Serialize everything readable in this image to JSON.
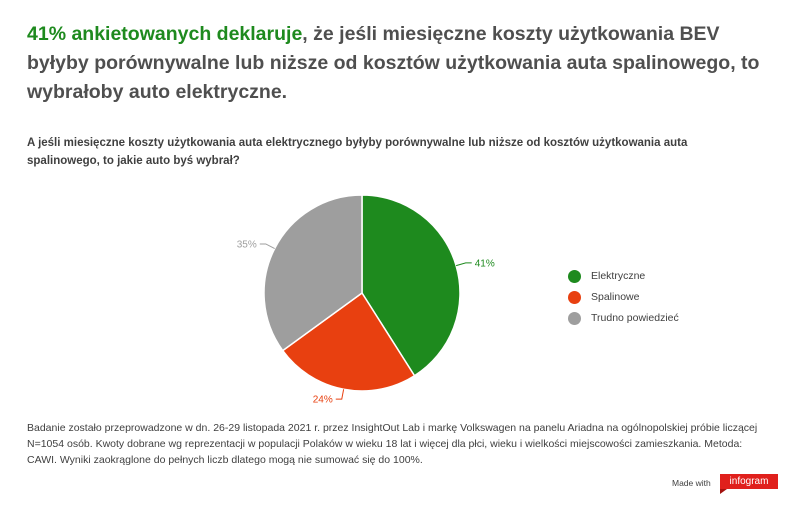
{
  "headline": {
    "accent": "41% ankietowanych deklaruje",
    "rest": ", że jeśli miesięczne koszty użytkowania BEV byłyby porównywalne lub niższe od kosztów użytkowania auta spalinowego, to wybrałoby auto elektryczne."
  },
  "question": "A jeśli miesięczne koszty użytkowania auta elektrycznego byłyby porównywalne lub niższe od kosztów użytkowania auta spalinowego, to jakie auto byś wybrał?",
  "chart_data": {
    "type": "pie",
    "legend_position": "right",
    "slices": [
      {
        "label": "Elektryczne",
        "value": 41,
        "display": "41%",
        "color": "#1e8a1e"
      },
      {
        "label": "Spalinowe",
        "value": 24,
        "display": "24%",
        "color": "#e84010"
      },
      {
        "label": "Trudno powiedzieć",
        "value": 35,
        "display": "35%",
        "color": "#9e9e9e"
      }
    ]
  },
  "footnote": "Badanie zostało przeprowadzone w dn. 26-29 listopada 2021 r. przez InsightOut Lab i markę Volkswagen na panelu Ariadna na ogólnopolskiej próbie liczącej N=1054 osób. Kwoty dobrane wg reprezentacji w populacji Polaków w wieku 18 lat i więcej dla płci, wieku i wielkości miejscowości zamieszkania. Metoda: CAWI. Wyniki zaokrąglone do pełnych liczb dlatego mogą nie sumować się do 100%.",
  "branding": {
    "made_with": "Made with",
    "logo_text": "infogram",
    "logo_color": "#e0201c"
  }
}
